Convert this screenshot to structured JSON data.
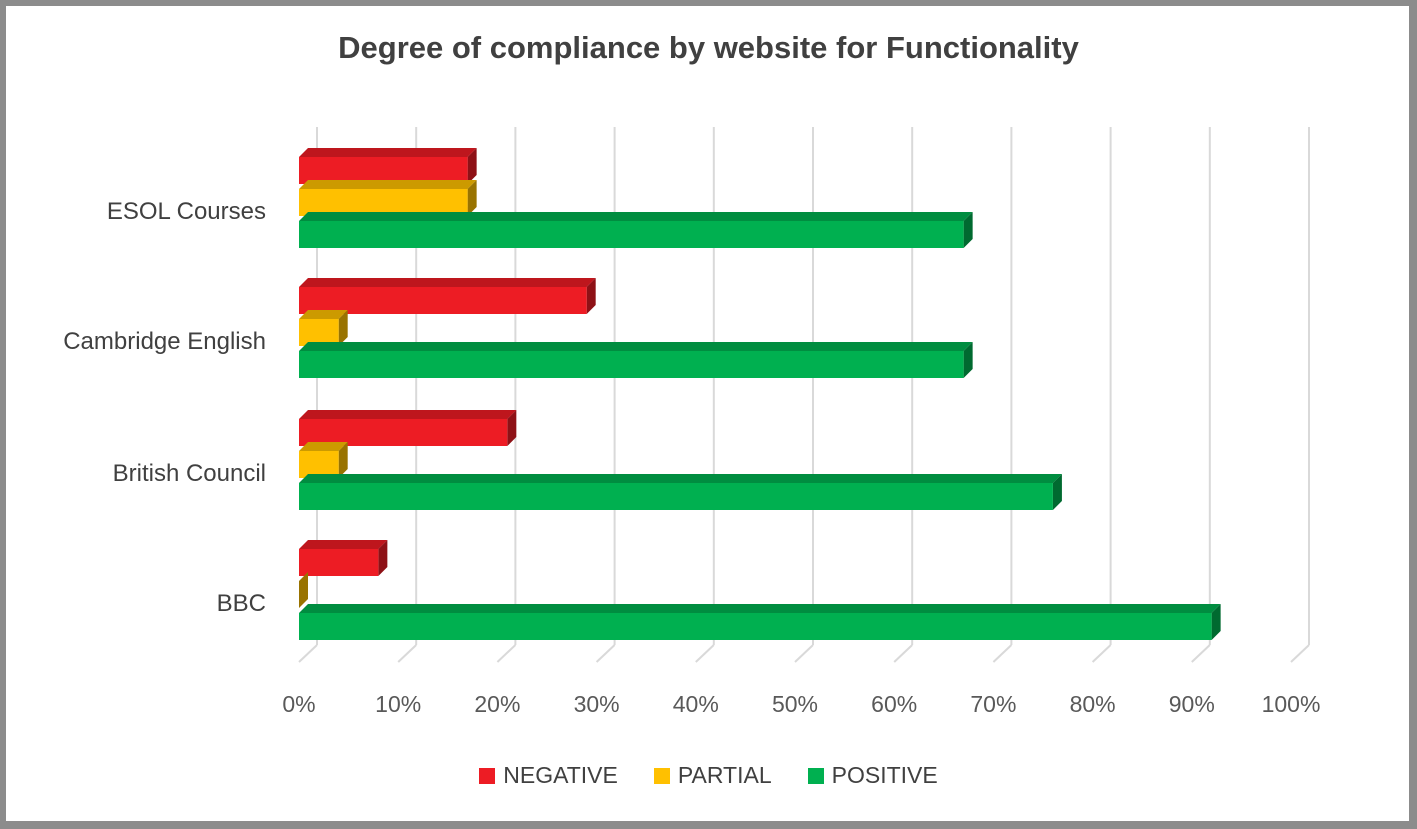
{
  "chart_data": {
    "type": "bar",
    "orientation": "horizontal",
    "title": "Degree of compliance by website for Functionality",
    "categories": [
      "ESOL Courses",
      "Cambridge English",
      "British Council",
      "BBC"
    ],
    "series": [
      {
        "name": "NEGATIVE",
        "color": "#ED1C24",
        "values": [
          17,
          29,
          21,
          8
        ]
      },
      {
        "name": "PARTIAL",
        "color": "#FFC000",
        "values": [
          17,
          4,
          4,
          0
        ]
      },
      {
        "name": "POSITIVE",
        "color": "#00B050",
        "values": [
          67,
          67,
          76,
          92
        ]
      }
    ],
    "x_ticks": [
      "0%",
      "10%",
      "20%",
      "30%",
      "40%",
      "50%",
      "60%",
      "70%",
      "80%",
      "90%",
      "100%"
    ],
    "xlim": [
      0,
      100
    ],
    "grid": true,
    "legend_position": "bottom"
  }
}
